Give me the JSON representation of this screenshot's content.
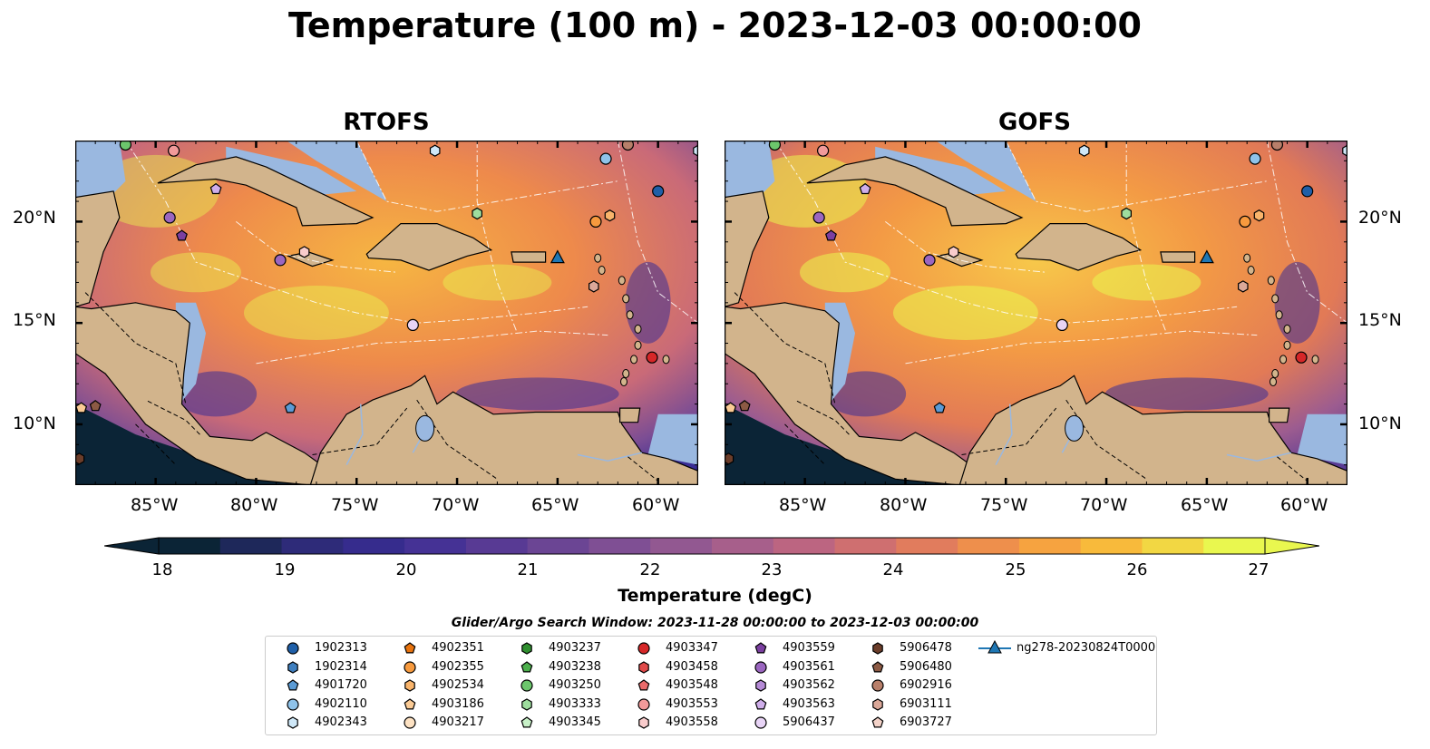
{
  "title": "Temperature (100 m) - 2023-12-03 00:00:00",
  "panels": [
    {
      "title": "RTOFS"
    },
    {
      "title": "GOFS"
    }
  ],
  "lat_labels": [
    "20°N",
    "15°N",
    "10°N"
  ],
  "lon_labels": [
    "85°W",
    "80°W",
    "75°W",
    "70°W",
    "65°W",
    "60°W"
  ],
  "map_extent": {
    "lon": [
      -89,
      -58
    ],
    "lat": [
      7,
      24
    ]
  },
  "colorbar": {
    "label": "Temperature (degC)",
    "ticks": [
      "18",
      "19",
      "20",
      "21",
      "22",
      "23",
      "24",
      "25",
      "26",
      "27"
    ],
    "range": [
      18,
      27
    ],
    "extend": "both",
    "colormap_stops": [
      "#0b2436",
      "#2b2a73",
      "#3a2d95",
      "#5a3b94",
      "#7b4d94",
      "#9c5c90",
      "#c0667f",
      "#e07a5f",
      "#f59a42",
      "#f9c13a",
      "#e9f74f"
    ]
  },
  "colors": {
    "land": "#d2b48c",
    "shallow_water": "#9ab8e0",
    "deep_water": "#0b2436"
  },
  "search_window": "Glider/Argo Search Window: 2023-11-28 00:00:00 to 2023-12-03 00:00:00",
  "legend": [
    {
      "label": "1902313",
      "marker": "circle",
      "color": "#1f5fa8"
    },
    {
      "label": "1902314",
      "marker": "hexagon",
      "color": "#3f7fbf"
    },
    {
      "label": "4901720",
      "marker": "pentagon",
      "color": "#5b9bd5"
    },
    {
      "label": "4902110",
      "marker": "circle",
      "color": "#8fc3ea"
    },
    {
      "label": "4902343",
      "marker": "hexagon",
      "color": "#cfe8f8"
    },
    {
      "label": "4902351",
      "marker": "pentagon",
      "color": "#e8730e"
    },
    {
      "label": "4902355",
      "marker": "circle",
      "color": "#f79a3e"
    },
    {
      "label": "4902534",
      "marker": "hexagon",
      "color": "#f9b46b"
    },
    {
      "label": "4903186",
      "marker": "pentagon",
      "color": "#fbcb95"
    },
    {
      "label": "4903217",
      "marker": "circle",
      "color": "#fde2c3"
    },
    {
      "label": "4903237",
      "marker": "hexagon",
      "color": "#2f8f2f"
    },
    {
      "label": "4903238",
      "marker": "pentagon",
      "color": "#4caf4c"
    },
    {
      "label": "4903250",
      "marker": "circle",
      "color": "#6cc66c"
    },
    {
      "label": "4903333",
      "marker": "hexagon",
      "color": "#9edd9e"
    },
    {
      "label": "4903345",
      "marker": "pentagon",
      "color": "#c8f1c8"
    },
    {
      "label": "4903347",
      "marker": "circle",
      "color": "#d62728"
    },
    {
      "label": "4903458",
      "marker": "hexagon",
      "color": "#e04a4a"
    },
    {
      "label": "4903548",
      "marker": "pentagon",
      "color": "#ea6b6b"
    },
    {
      "label": "4903553",
      "marker": "circle",
      "color": "#f29a9a"
    },
    {
      "label": "4903558",
      "marker": "hexagon",
      "color": "#f9cccc"
    },
    {
      "label": "4903559",
      "marker": "pentagon",
      "color": "#7b3fa0"
    },
    {
      "label": "4903561",
      "marker": "circle",
      "color": "#9b66c0"
    },
    {
      "label": "4903562",
      "marker": "hexagon",
      "color": "#b58ad6"
    },
    {
      "label": "4903563",
      "marker": "pentagon",
      "color": "#cfaeea"
    },
    {
      "label": "5906437",
      "marker": "circle",
      "color": "#e8d4f6"
    },
    {
      "label": "5906478",
      "marker": "hexagon",
      "color": "#6b3d2a"
    },
    {
      "label": "5906480",
      "marker": "pentagon",
      "color": "#8c5a44"
    },
    {
      "label": "6902916",
      "marker": "circle",
      "color": "#b87f6a"
    },
    {
      "label": "6903111",
      "marker": "hexagon",
      "color": "#dba899"
    },
    {
      "label": "6903727",
      "marker": "pentagon",
      "color": "#f3d2c8"
    },
    {
      "label": "ng278-20230824T0000",
      "marker": "triangle-line",
      "color": "#1f77b4"
    }
  ],
  "floats": [
    {
      "lon": -86.5,
      "lat": 23.8,
      "marker": "circle",
      "color": "#6cc66c"
    },
    {
      "lon": -84.1,
      "lat": 23.5,
      "marker": "circle",
      "color": "#f29a9a"
    },
    {
      "lon": -82.0,
      "lat": 21.6,
      "marker": "pentagon",
      "color": "#cfaeea"
    },
    {
      "lon": -84.3,
      "lat": 20.2,
      "marker": "circle",
      "color": "#9b66c0"
    },
    {
      "lon": -83.7,
      "lat": 19.3,
      "marker": "pentagon",
      "color": "#7b3fa0"
    },
    {
      "lon": -78.8,
      "lat": 18.1,
      "marker": "circle",
      "color": "#9b66c0"
    },
    {
      "lon": -77.6,
      "lat": 18.5,
      "marker": "hexagon",
      "color": "#f9cccc"
    },
    {
      "lon": -71.1,
      "lat": 23.5,
      "marker": "hexagon",
      "color": "#cfe8f8"
    },
    {
      "lon": -69.0,
      "lat": 20.4,
      "marker": "hexagon",
      "color": "#9edd9e"
    },
    {
      "lon": -72.2,
      "lat": 14.9,
      "marker": "circle",
      "color": "#e8d4f6"
    },
    {
      "lon": -62.6,
      "lat": 23.1,
      "marker": "circle",
      "color": "#8fc3ea"
    },
    {
      "lon": -60.0,
      "lat": 21.5,
      "marker": "circle",
      "color": "#1f5fa8"
    },
    {
      "lon": -63.1,
      "lat": 20.0,
      "marker": "circle",
      "color": "#f79a3e"
    },
    {
      "lon": -62.4,
      "lat": 20.3,
      "marker": "hexagon",
      "color": "#f9b46b"
    },
    {
      "lon": -63.2,
      "lat": 16.8,
      "marker": "hexagon",
      "color": "#dba899"
    },
    {
      "lon": -60.3,
      "lat": 13.3,
      "marker": "circle",
      "color": "#d62728"
    },
    {
      "lon": -78.3,
      "lat": 10.8,
      "marker": "pentagon",
      "color": "#5b9bd5"
    },
    {
      "lon": -88.7,
      "lat": 10.8,
      "marker": "pentagon",
      "color": "#fbcb95"
    },
    {
      "lon": -88.0,
      "lat": 10.9,
      "marker": "pentagon",
      "color": "#8c5a44"
    },
    {
      "lon": -88.8,
      "lat": 8.3,
      "marker": "hexagon",
      "color": "#6b3d2a"
    },
    {
      "lon": -58.0,
      "lat": 23.5,
      "marker": "hexagon",
      "color": "#cfe8f8"
    },
    {
      "lon": -61.5,
      "lat": 23.8,
      "marker": "circle",
      "color": "#b87f6a"
    }
  ],
  "glider": {
    "label": "ng278-20230824T0000",
    "lon": -65.0,
    "lat": 18.2,
    "color": "#1f77b4"
  }
}
